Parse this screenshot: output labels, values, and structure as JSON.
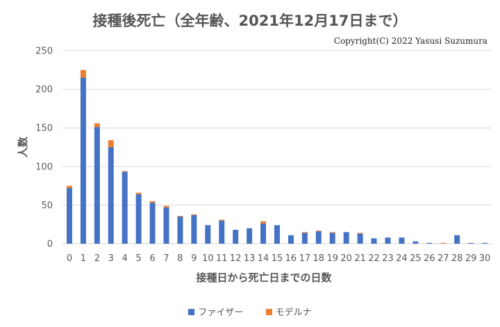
{
  "chart_data": {
    "type": "bar",
    "stacked": true,
    "title": "接種後死亡（全年齢、2021年12月17日まで）",
    "credit": "Copyright(C) 2022 Yasusi Suzumura",
    "xlabel": "接種日から死亡日までの日数",
    "ylabel": "人数",
    "ylim": [
      0,
      250
    ],
    "yticks": [
      0,
      50,
      100,
      150,
      200,
      250
    ],
    "grid": true,
    "legend_position": "bottom",
    "categories": [
      "0",
      "1",
      "2",
      "3",
      "4",
      "5",
      "6",
      "7",
      "8",
      "9",
      "10",
      "11",
      "12",
      "13",
      "14",
      "15",
      "16",
      "17",
      "18",
      "19",
      "20",
      "21",
      "22",
      "23",
      "24",
      "25",
      "26",
      "27",
      "28",
      "29",
      "30"
    ],
    "series": [
      {
        "name": "ファイザー",
        "color": "#4472C4",
        "values": [
          72,
          215,
          151,
          125,
          93,
          64,
          53,
          47,
          35,
          37,
          24,
          30,
          18,
          20,
          26,
          24,
          11,
          14,
          16,
          14,
          15,
          13,
          7,
          8,
          8,
          3,
          1,
          0,
          11,
          1,
          1
        ]
      },
      {
        "name": "モデルナ",
        "color": "#ED7D31",
        "values": [
          3,
          10,
          5,
          9,
          1,
          2,
          2,
          2,
          1,
          1,
          0,
          1,
          0,
          0,
          3,
          0,
          0,
          1,
          1,
          1,
          0,
          1,
          0,
          0,
          0,
          0,
          0,
          1,
          0,
          0,
          0
        ]
      }
    ]
  }
}
